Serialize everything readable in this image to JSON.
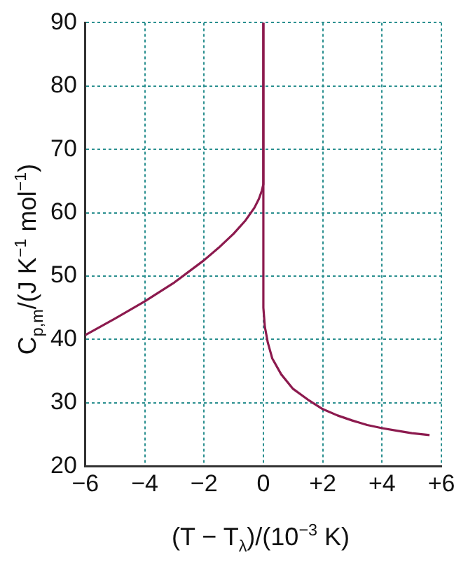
{
  "chart_data": {
    "type": "line",
    "xlabel": "(T − T$_{λ}$)/(10$^{−3}$ K)",
    "ylabel": "C$_{p,m}$/(J K$^{−1}$ mol$^{−1}$)",
    "series": [
      {
        "color": "#8c1a4e",
        "x": [
          -6,
          -5,
          -4,
          -3,
          -2,
          -1.5,
          -1,
          -0.6,
          -0.3,
          -0.15,
          -0.05,
          0,
          0
        ],
        "values": [
          40.7,
          43.3,
          46,
          49,
          52.5,
          54.5,
          56.7,
          58.8,
          60.8,
          62.2,
          63.5,
          64.5,
          90
        ]
      },
      {
        "color": "#8c1a4e",
        "x": [
          0,
          0,
          0.05,
          0.15,
          0.3,
          0.6,
          1,
          1.5,
          2,
          2.5,
          3,
          3.5,
          4,
          4.5,
          5,
          5.6
        ],
        "values": [
          90,
          45,
          42,
          39.5,
          37,
          34.5,
          32.2,
          30.5,
          29,
          28,
          27.2,
          26.5,
          26,
          25.6,
          25.2,
          24.9
        ]
      }
    ],
    "xlim": [
      -6,
      6
    ],
    "xticks": [
      {
        "value": -6,
        "label": "−6"
      },
      {
        "value": -4,
        "label": "−4"
      },
      {
        "value": -2,
        "label": "−2"
      },
      0,
      {
        "value": 2,
        "label": "+2"
      },
      {
        "value": 4,
        "label": "+4"
      },
      {
        "value": 6,
        "label": "+6"
      }
    ],
    "ylim": [
      20,
      90
    ],
    "yticks": [
      20,
      30,
      40,
      50,
      60,
      70,
      80,
      90
    ],
    "grid": true,
    "legend": false,
    "marker": "none",
    "line_style": "solid"
  }
}
